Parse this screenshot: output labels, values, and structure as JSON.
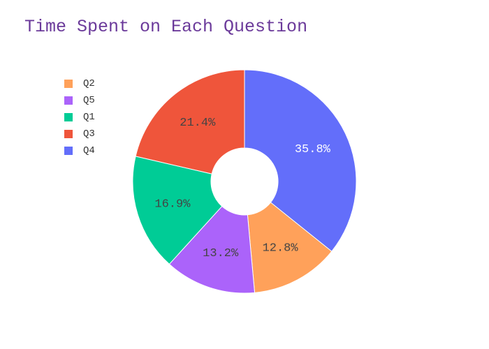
{
  "chart_data": {
    "type": "pie",
    "title": "Time Spent on Each Question",
    "hole": true,
    "legend_position": "top-left",
    "slices": [
      {
        "label": "Q4",
        "value": 35.8,
        "text": "35.8%",
        "color": "#636efa",
        "text_color": "#ffffff"
      },
      {
        "label": "Q2",
        "value": 12.8,
        "text": "12.8%",
        "color": "#ffa15a",
        "text_color": "#444444"
      },
      {
        "label": "Q5",
        "value": 13.2,
        "text": "13.2%",
        "color": "#ab63fa",
        "text_color": "#444444"
      },
      {
        "label": "Q1",
        "value": 16.9,
        "text": "16.9%",
        "color": "#00cc96",
        "text_color": "#444444"
      },
      {
        "label": "Q3",
        "value": 21.4,
        "text": "21.4%",
        "color": "#ef553b",
        "text_color": "#444444"
      }
    ],
    "legend": [
      {
        "label": "Q2",
        "color": "#ffa15a"
      },
      {
        "label": "Q5",
        "color": "#ab63fa"
      },
      {
        "label": "Q1",
        "color": "#00cc96"
      },
      {
        "label": "Q3",
        "color": "#ef553b"
      },
      {
        "label": "Q4",
        "color": "#636efa"
      }
    ]
  }
}
